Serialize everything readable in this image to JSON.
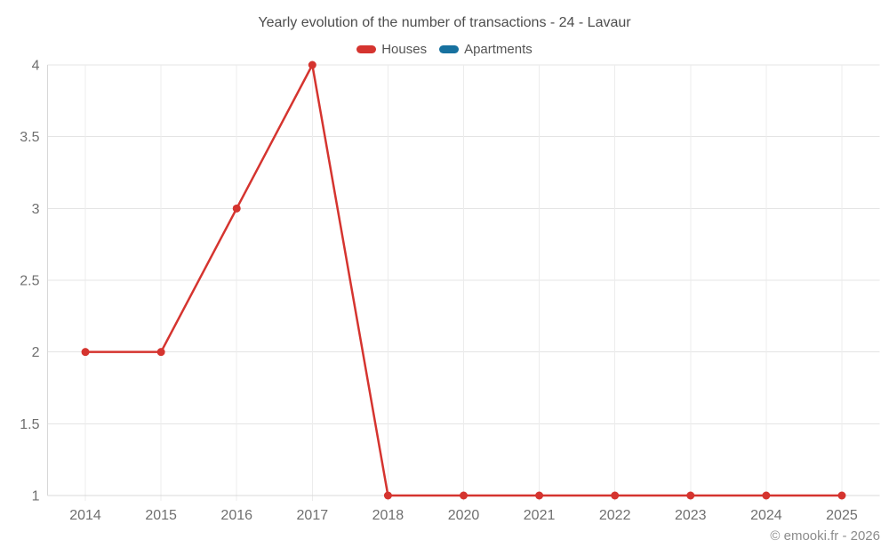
{
  "page": {
    "footer": "© emooki.fr - 2026"
  },
  "chart_data": {
    "type": "line",
    "title": "Yearly evolution of the number of transactions - 24 - Lavaur",
    "xlabel": "",
    "ylabel": "",
    "categories": [
      "2014",
      "2015",
      "2016",
      "2017",
      "2018",
      "2020",
      "2021",
      "2022",
      "2023",
      "2024",
      "2025"
    ],
    "series": [
      {
        "name": "Houses",
        "color": "#d5342f",
        "values": [
          2,
          2,
          3,
          4,
          1,
          1,
          1,
          1,
          1,
          1,
          1
        ]
      },
      {
        "name": "Apartments",
        "color": "#17719f",
        "values": []
      }
    ],
    "yticks": [
      1,
      1.5,
      2,
      2.5,
      3,
      3.5,
      4
    ],
    "ylim": [
      1,
      4
    ],
    "legend_position": "top",
    "grid": true,
    "colors": {
      "grid_horizontal": "#e4e4e4",
      "grid_vertical": "#ececec",
      "axis_line": "#d8d8d8",
      "tick_label": "#6f6f6f"
    }
  }
}
